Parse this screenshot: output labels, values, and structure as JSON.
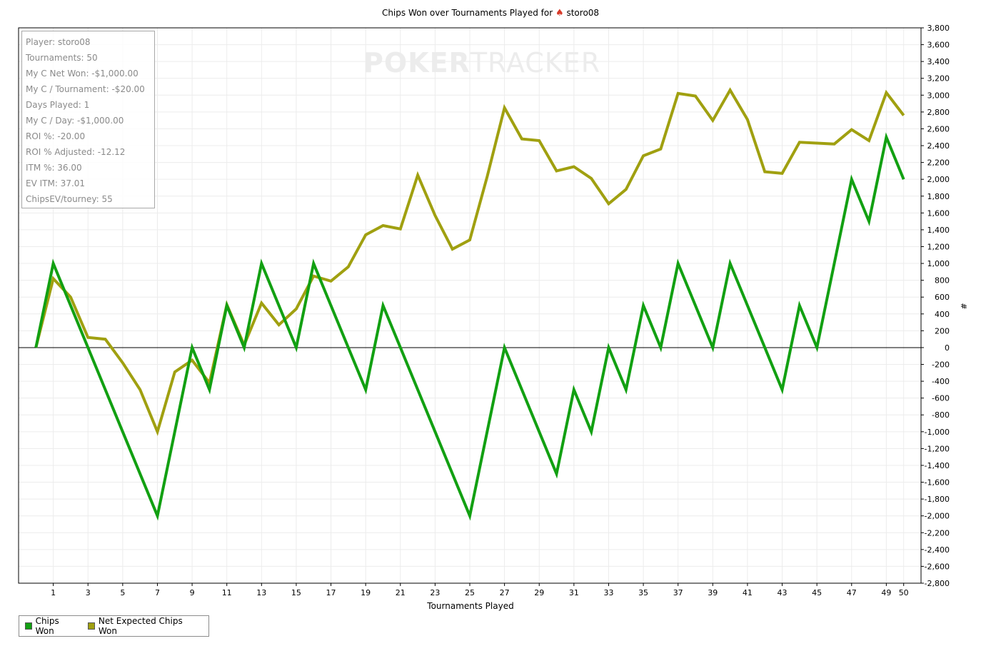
{
  "title_prefix": "Chips Won over Tournaments Played for",
  "title_player": "storo08",
  "watermark": {
    "part1": "POKER",
    "part2": "TRACKER"
  },
  "stats": [
    "Player: storo08",
    "Tournaments: 50",
    "My C Net Won: -$1,000.00",
    "My C / Tournament: -$20.00",
    "Days Played: 1",
    "My C / Day: -$1,000.00",
    "ROI %: -20.00",
    "ROI % Adjusted: -12.12",
    "ITM %: 36.00",
    "EV ITM: 37.01",
    "ChipsEV/tourney: 55"
  ],
  "legend": [
    {
      "label": "Chips Won",
      "color": "#12a012"
    },
    {
      "label": "Net Expected Chips Won",
      "color": "#a0a010"
    }
  ],
  "chart_data": {
    "type": "line",
    "title": "Chips Won over Tournaments Played for storo08",
    "xlabel": "Tournaments Played",
    "ylabel": "#",
    "xlim": [
      -1,
      51
    ],
    "ylim": [
      -2800,
      3800
    ],
    "x_ticks": [
      1,
      3,
      5,
      7,
      9,
      11,
      13,
      15,
      17,
      19,
      21,
      23,
      25,
      27,
      29,
      31,
      33,
      35,
      37,
      39,
      41,
      43,
      45,
      47,
      49,
      50
    ],
    "y_ticks": [
      3800,
      3600,
      3400,
      3200,
      3000,
      2800,
      2600,
      2400,
      2200,
      2000,
      1800,
      1600,
      1400,
      1200,
      1000,
      800,
      600,
      400,
      200,
      0,
      -200,
      -400,
      -600,
      -800,
      -1000,
      -1200,
      -1400,
      -1600,
      -1800,
      -2000,
      -2200,
      -2400,
      -2600,
      -2800
    ],
    "y_tick_labels": [
      "3,800",
      "3,600",
      "3,400",
      "3,200",
      "3,000",
      "2,800",
      "2,600",
      "2,400",
      "2,200",
      "2,000",
      "1,800",
      "1,600",
      "1,400",
      "1,200",
      "1,000",
      "800",
      "600",
      "400",
      "200",
      "0",
      "-200",
      "-400",
      "-600",
      "-800",
      "-1,000",
      "-1,200",
      "-1,400",
      "-1,600",
      "-1,800",
      "-2,000",
      "-2,200",
      "-2,400",
      "-2,600",
      "-2,800"
    ],
    "grid": true,
    "legend_position": "bottom-left",
    "x": [
      0,
      1,
      2,
      3,
      4,
      5,
      6,
      7,
      8,
      9,
      10,
      11,
      12,
      13,
      14,
      15,
      16,
      17,
      18,
      19,
      20,
      21,
      22,
      23,
      24,
      25,
      26,
      27,
      28,
      29,
      30,
      31,
      32,
      33,
      34,
      35,
      36,
      37,
      38,
      39,
      40,
      41,
      42,
      43,
      44,
      45,
      46,
      47,
      48,
      49,
      50
    ],
    "series": [
      {
        "name": "Chips Won",
        "color": "#12a012",
        "values": [
          0,
          1000,
          500,
          0,
          -500,
          -1000,
          -1500,
          -2000,
          -1000,
          0,
          -500,
          500,
          0,
          1000,
          500,
          0,
          1000,
          500,
          0,
          -500,
          500,
          0,
          -500,
          -1000,
          -1500,
          -2000,
          -1000,
          0,
          -500,
          -1000,
          -1500,
          -500,
          -1000,
          0,
          -500,
          500,
          0,
          1000,
          500,
          0,
          1000,
          500,
          0,
          -500,
          500,
          0,
          1000,
          2000,
          1500,
          2500,
          2000
        ]
      },
      {
        "name": "Net Expected Chips Won",
        "color": "#a0a010",
        "values": [
          0,
          820,
          600,
          120,
          100,
          -180,
          -500,
          -1000,
          -290,
          -150,
          -420,
          510,
          30,
          530,
          270,
          460,
          850,
          790,
          960,
          1340,
          1450,
          1410,
          2050,
          1570,
          1170,
          1280,
          2030,
          2850,
          2480,
          2460,
          2100,
          2150,
          2010,
          1710,
          1880,
          2280,
          2360,
          3020,
          2990,
          2700,
          3060,
          2710,
          2090,
          2070,
          2440,
          2430,
          2420,
          2590,
          2460,
          3030,
          2760
        ]
      }
    ]
  }
}
